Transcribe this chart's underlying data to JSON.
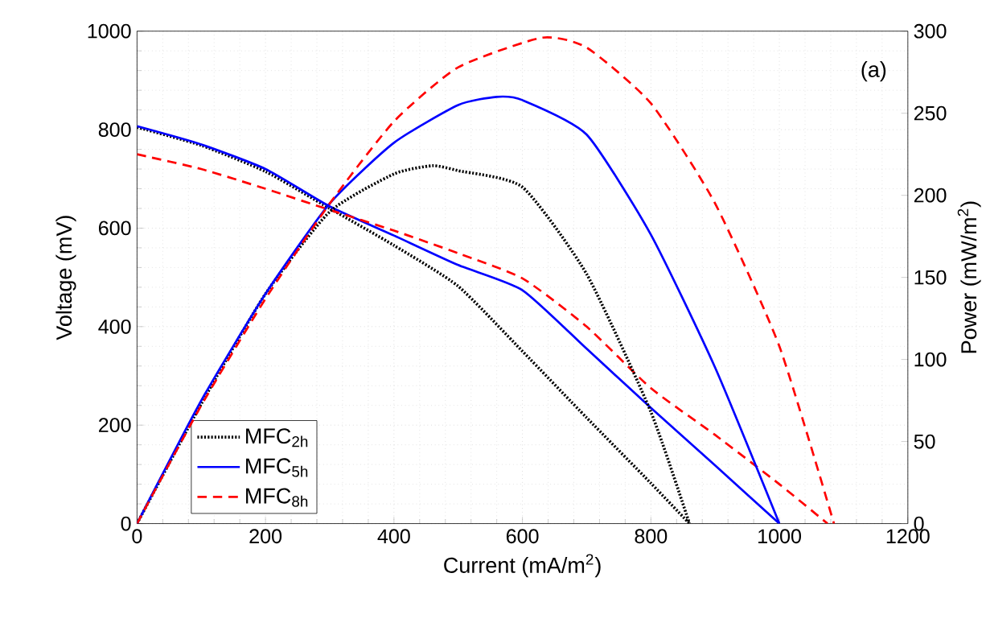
{
  "chart_data": {
    "type": "line",
    "xlabel": "Current (mA/m$^{2}$)",
    "ylabel": "Voltage (mV)",
    "y2label": "Power (mW/m$^{2}$)",
    "annotations": [
      "(a)"
    ],
    "xlim": [
      0,
      1200
    ],
    "xticks": [
      0,
      200,
      400,
      600,
      800,
      1000,
      1200
    ],
    "ylim": [
      0,
      1000
    ],
    "yticks": [
      0,
      200,
      400,
      600,
      800,
      1000
    ],
    "y2lim": [
      0,
      300
    ],
    "y2ticks": [
      0,
      50,
      100,
      150,
      200,
      250,
      300
    ],
    "grid": true,
    "legend": "bottom left",
    "series": [
      {
        "name": "MFC$_{2h}$",
        "color": "#000000",
        "line_style": "dotted",
        "x": [
          0,
          100,
          200,
          300,
          400,
          500,
          600,
          700,
          800,
          860
        ],
        "values": [
          805,
          768,
          715,
          640,
          565,
          482,
          350,
          215,
          82,
          0
        ]
      },
      {
        "name": "MFC$_{5h}$",
        "color": "#0000ff",
        "line_style": "solid",
        "x": [
          0,
          100,
          200,
          300,
          400,
          500,
          600,
          700,
          800,
          900,
          1000
        ],
        "values": [
          807,
          770,
          720,
          644,
          585,
          525,
          474,
          355,
          235,
          118,
          0
        ]
      },
      {
        "name": "MFC$_{8h}$",
        "color": "#ff0000",
        "line_style": "dashed",
        "x": [
          0,
          100,
          200,
          300,
          400,
          500,
          600,
          700,
          800,
          900,
          1000,
          1075
        ],
        "values": [
          750,
          720,
          680,
          637,
          595,
          549,
          498,
          400,
          275,
          180,
          80,
          0
        ]
      },
      {
        "color": "#000000",
        "line_style": "dotted",
        "axis": "y2",
        "x": [
          0,
          100,
          200,
          300,
          400,
          460,
          500,
          600,
          700,
          800,
          860
        ],
        "values": [
          0,
          73,
          140,
          190,
          213,
          218,
          215,
          205,
          152,
          68,
          0
        ]
      },
      {
        "color": "#0000ff",
        "line_style": "solid",
        "axis": "y2",
        "x": [
          0,
          100,
          200,
          300,
          400,
          500,
          560,
          600,
          700,
          800,
          900,
          1000
        ],
        "values": [
          0,
          75,
          140,
          195,
          232,
          255,
          260,
          258,
          237,
          176,
          95,
          0
        ]
      },
      {
        "color": "#ff0000",
        "line_style": "dashed",
        "axis": "y2",
        "x": [
          0,
          100,
          200,
          300,
          400,
          500,
          630,
          700,
          800,
          900,
          1000,
          1085
        ],
        "values": [
          0,
          72,
          137,
          195,
          245,
          278,
          296,
          290,
          256,
          195,
          108,
          0
        ]
      }
    ]
  }
}
